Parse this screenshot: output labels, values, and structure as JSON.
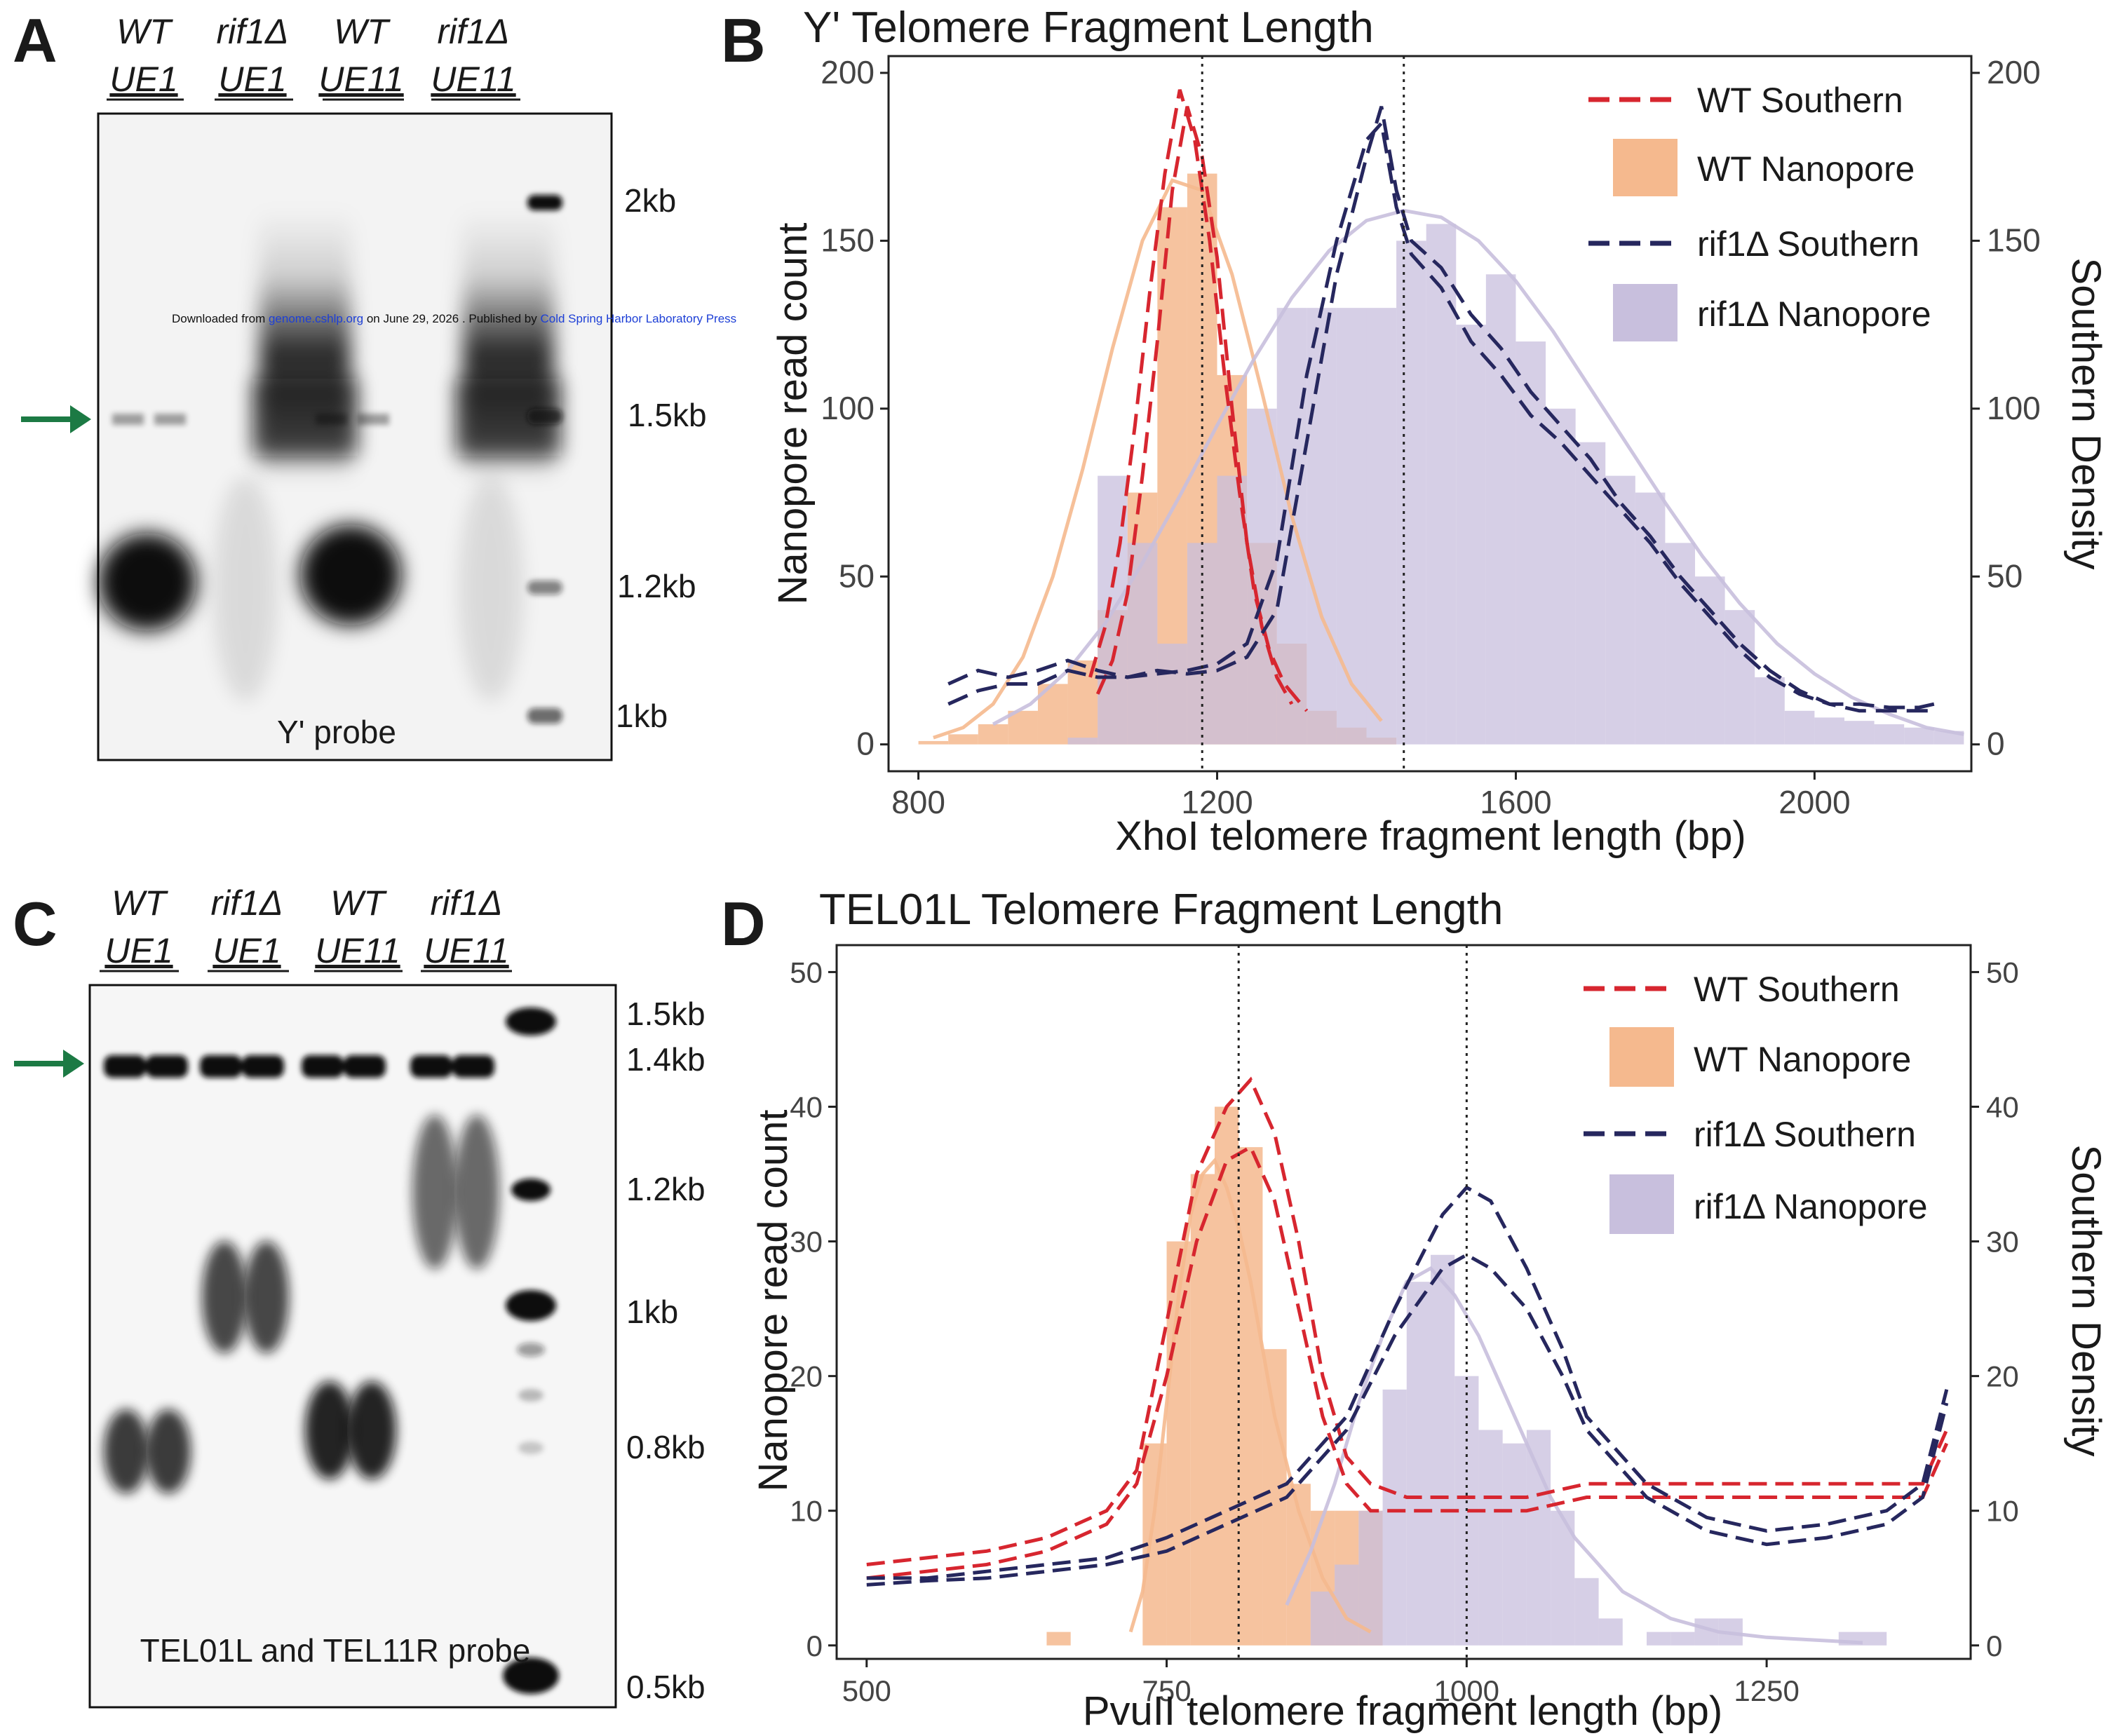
{
  "banner": {
    "prefix": "Downloaded from ",
    "link": "genome.cshlp.org",
    "middle": " on June 29, 2026 . Published by ",
    "publisher": "Cold Spring Harbor Laboratory Press"
  },
  "colors": {
    "wt_southern": "#d7262f",
    "wt_nanopore": "#f5b98e",
    "rif1_southern": "#26275e",
    "rif1_nanopore": "#c8bfdd",
    "arrow": "#1c7a44"
  },
  "panel_a": {
    "label": "A",
    "lanes": [
      {
        "top": "WT",
        "bottom": "UE1"
      },
      {
        "top": "rif1Δ",
        "bottom": "UE1"
      },
      {
        "top": "WT",
        "bottom": "UE11"
      },
      {
        "top": "rif1Δ",
        "bottom": "UE11"
      }
    ],
    "markers": [
      "2kb",
      "1.5kb",
      "1.2kb",
      "1kb"
    ],
    "probe": "Y' probe",
    "arrow_icon": "arrow-right-icon"
  },
  "panel_c": {
    "label": "C",
    "lanes": [
      {
        "top": "WT",
        "bottom": "UE1"
      },
      {
        "top": "rif1Δ",
        "bottom": "UE1"
      },
      {
        "top": "WT",
        "bottom": "UE11"
      },
      {
        "top": "rif1Δ",
        "bottom": "UE11"
      }
    ],
    "markers": [
      "1.5kb",
      "1.4kb",
      "1.2kb",
      "1kb",
      "0.8kb",
      "0.5kb"
    ],
    "probe": "TEL01L and TEL11R probe",
    "arrow_icon": "arrow-right-icon"
  },
  "chart_data": [
    {
      "type": "bar",
      "panel": "B",
      "title": "Y' Telomere Fragment Length",
      "xlabel": "XhoI telomere fragment length (bp)",
      "ylabel": "Nanopore read count",
      "y2label": "Southern Density",
      "xlim": [
        760,
        2210
      ],
      "ylim": [
        -8,
        205
      ],
      "xticks": [
        800,
        1200,
        1600,
        2000
      ],
      "yticks": [
        0,
        50,
        100,
        150,
        200
      ],
      "vlines": [
        1180,
        1450
      ],
      "legend_position": "top-right",
      "legend": [
        "WT Southern",
        "WT Nanopore",
        "rif1Δ Southern",
        "rif1Δ Nanopore"
      ],
      "bin_width": 40,
      "wt_nanopore": {
        "x": [
          820,
          860,
          900,
          940,
          980,
          1020,
          1060,
          1100,
          1140,
          1180,
          1220,
          1260,
          1300,
          1340,
          1380,
          1420
        ],
        "values": [
          1,
          3,
          6,
          10,
          18,
          25,
          40,
          75,
          160,
          170,
          110,
          60,
          30,
          10,
          5,
          2
        ]
      },
      "wt_nanopore_fit": {
        "x": [
          820,
          860,
          900,
          940,
          980,
          1020,
          1060,
          1100,
          1140,
          1180,
          1220,
          1260,
          1300,
          1340,
          1380,
          1420
        ],
        "values": [
          2,
          5,
          12,
          26,
          50,
          82,
          118,
          150,
          168,
          165,
          140,
          105,
          68,
          38,
          18,
          7
        ]
      },
      "rif1_nanopore": {
        "x": [
          1020,
          1060,
          1100,
          1140,
          1180,
          1220,
          1260,
          1300,
          1340,
          1380,
          1420,
          1460,
          1500,
          1540,
          1580,
          1620,
          1660,
          1700,
          1740,
          1780,
          1820,
          1860,
          1900,
          1940,
          1980,
          2020,
          2060,
          2100,
          2140,
          2180
        ],
        "values": [
          2,
          80,
          60,
          30,
          60,
          80,
          100,
          130,
          130,
          130,
          130,
          150,
          155,
          125,
          140,
          120,
          100,
          90,
          80,
          75,
          60,
          50,
          40,
          20,
          10,
          8,
          7,
          6,
          5,
          4
        ]
      },
      "rif1_nanopore_fit": {
        "x": [
          900,
          950,
          1000,
          1050,
          1100,
          1150,
          1200,
          1250,
          1300,
          1350,
          1400,
          1450,
          1500,
          1550,
          1600,
          1650,
          1700,
          1750,
          1800,
          1850,
          1900,
          1950,
          2000,
          2050,
          2100,
          2150,
          2200
        ],
        "values": [
          6,
          12,
          22,
          36,
          54,
          74,
          95,
          115,
          133,
          147,
          156,
          159,
          157,
          150,
          138,
          123,
          106,
          89,
          72,
          56,
          42,
          30,
          21,
          14,
          9,
          5,
          3
        ]
      },
      "wt_southern_1": {
        "x": [
          1040,
          1060,
          1080,
          1100,
          1120,
          1140,
          1160,
          1180,
          1200,
          1220,
          1240,
          1260,
          1280,
          1300
        ],
        "values": [
          15,
          25,
          45,
          80,
          120,
          165,
          190,
          175,
          145,
          100,
          60,
          35,
          20,
          12
        ]
      },
      "wt_southern_2": {
        "x": [
          1030,
          1050,
          1070,
          1090,
          1110,
          1130,
          1150,
          1170,
          1190,
          1210,
          1230,
          1250,
          1270,
          1290,
          1320
        ],
        "values": [
          20,
          35,
          60,
          95,
          135,
          170,
          195,
          180,
          150,
          110,
          75,
          45,
          28,
          18,
          10
        ]
      },
      "rif1_southern_1": {
        "x": [
          840,
          880,
          920,
          960,
          1000,
          1040,
          1080,
          1120,
          1160,
          1200,
          1240,
          1280,
          1320,
          1360,
          1400,
          1420,
          1440,
          1460,
          1500,
          1540,
          1580,
          1620,
          1660,
          1700,
          1740,
          1780,
          1820,
          1860,
          1900,
          1940,
          1980,
          2020,
          2060,
          2100,
          2140,
          2160
        ],
        "values": [
          18,
          22,
          20,
          22,
          25,
          22,
          20,
          22,
          21,
          22,
          26,
          40,
          90,
          140,
          175,
          190,
          165,
          150,
          142,
          128,
          118,
          105,
          95,
          85,
          72,
          62,
          50,
          40,
          30,
          22,
          16,
          12,
          10,
          10,
          10,
          10
        ]
      },
      "rif1_southern_2": {
        "x": [
          840,
          880,
          920,
          960,
          1000,
          1040,
          1080,
          1120,
          1160,
          1200,
          1240,
          1280,
          1320,
          1360,
          1400,
          1420,
          1440,
          1460,
          1500,
          1540,
          1580,
          1620,
          1660,
          1700,
          1740,
          1780,
          1820,
          1860,
          1900,
          1940,
          1980,
          2020,
          2060,
          2100,
          2140,
          2160
        ],
        "values": [
          12,
          16,
          18,
          18,
          22,
          20,
          20,
          21,
          22,
          24,
          30,
          55,
          110,
          150,
          180,
          185,
          160,
          146,
          136,
          120,
          110,
          98,
          90,
          80,
          70,
          60,
          48,
          38,
          28,
          20,
          15,
          12,
          12,
          11,
          11,
          12
        ]
      }
    },
    {
      "type": "bar",
      "panel": "D",
      "title": "TEL01L Telomere Fragment Length",
      "xlabel": "PvuII telomere fragment length (bp)",
      "ylabel": "Nanopore read count",
      "y2label": "Southern Density",
      "xlim": [
        475,
        1420
      ],
      "ylim": [
        -1,
        52
      ],
      "xticks": [
        500,
        750,
        1000,
        1250
      ],
      "yticks": [
        0,
        10,
        20,
        30,
        40,
        50
      ],
      "vlines": [
        810,
        1000
      ],
      "legend_position": "top-right",
      "legend": [
        "WT Southern",
        "WT Nanopore",
        "rif1Δ Southern",
        "rif1Δ Nanopore"
      ],
      "bin_width": 20,
      "wt_nanopore": {
        "x": [
          660,
          680,
          700,
          720,
          740,
          760,
          780,
          800,
          820,
          840,
          860,
          880,
          900,
          920
        ],
        "values": [
          1,
          0,
          0,
          0,
          15,
          30,
          35,
          40,
          37,
          22,
          12,
          10,
          10,
          10
        ]
      },
      "wt_nanopore_fit": {
        "x": [
          720,
          730,
          740,
          750,
          760,
          770,
          780,
          790,
          800,
          810,
          820,
          830,
          840,
          860,
          880,
          900,
          920
        ],
        "values": [
          1,
          4,
          10,
          18,
          26,
          32,
          35,
          36,
          34,
          31,
          27,
          22,
          17,
          10,
          5,
          2,
          1
        ]
      },
      "rif1_nanopore": {
        "x": [
          880,
          900,
          920,
          940,
          960,
          980,
          1000,
          1020,
          1040,
          1060,
          1080,
          1100,
          1120,
          1140,
          1160,
          1180,
          1200,
          1220,
          1320,
          1340
        ],
        "values": [
          4,
          6,
          10,
          19,
          27,
          29,
          20,
          16,
          15,
          16,
          10,
          5,
          2,
          0,
          1,
          1,
          2,
          2,
          1,
          1
        ]
      },
      "rif1_nanopore_fit": {
        "x": [
          850,
          870,
          890,
          910,
          930,
          950,
          970,
          990,
          1010,
          1030,
          1050,
          1070,
          1090,
          1110,
          1130,
          1150,
          1170,
          1190,
          1210,
          1230,
          1250,
          1270,
          1290,
          1310,
          1330
        ],
        "values": [
          3,
          7,
          12,
          18,
          23,
          27,
          28,
          26,
          23,
          19,
          15,
          11,
          8,
          6,
          4,
          3,
          2,
          1.5,
          1,
          0.8,
          0.6,
          0.5,
          0.4,
          0.3,
          0.2
        ]
      },
      "wt_southern_1": {
        "x": [
          500,
          550,
          600,
          650,
          700,
          725,
          750,
          775,
          800,
          820,
          840,
          860,
          880,
          900,
          920,
          950,
          1000,
          1050,
          1100,
          1150,
          1200,
          1250,
          1300,
          1350,
          1380,
          1400
        ],
        "values": [
          6,
          6.5,
          7,
          8,
          10,
          13,
          24,
          35,
          40,
          42,
          38,
          30,
          20,
          14,
          12,
          11,
          11,
          11,
          12,
          12,
          12,
          12,
          12,
          12,
          12,
          16
        ]
      },
      "wt_southern_2": {
        "x": [
          500,
          550,
          600,
          650,
          700,
          725,
          750,
          775,
          800,
          820,
          840,
          860,
          880,
          900,
          920,
          950,
          1000,
          1050,
          1100,
          1150,
          1200,
          1250,
          1300,
          1350,
          1380,
          1400
        ],
        "values": [
          5,
          5.5,
          6,
          7,
          9,
          12,
          20,
          30,
          36,
          37,
          33,
          25,
          17,
          12,
          10,
          10,
          10,
          10,
          11,
          11,
          11,
          11,
          11,
          11,
          11,
          15
        ]
      },
      "rif1_southern_1": {
        "x": [
          500,
          550,
          600,
          650,
          700,
          750,
          800,
          850,
          900,
          940,
          980,
          1000,
          1020,
          1050,
          1080,
          1100,
          1150,
          1200,
          1250,
          1300,
          1350,
          1380,
          1400
        ],
        "values": [
          5,
          5,
          5.5,
          6,
          6.5,
          8,
          10,
          12,
          17,
          25,
          32,
          34,
          33,
          28,
          22,
          17,
          12,
          9.5,
          8.5,
          9,
          10,
          12,
          19
        ]
      },
      "rif1_southern_2": {
        "x": [
          500,
          550,
          600,
          650,
          700,
          750,
          800,
          850,
          900,
          940,
          980,
          1000,
          1020,
          1050,
          1080,
          1100,
          1150,
          1200,
          1250,
          1300,
          1350,
          1380,
          1400
        ],
        "values": [
          4.5,
          4.8,
          5,
          5.5,
          6,
          7,
          9,
          11,
          16,
          23,
          28,
          29,
          28,
          25,
          20,
          16,
          11,
          8.5,
          7.5,
          8,
          9,
          11,
          18
        ]
      }
    }
  ]
}
